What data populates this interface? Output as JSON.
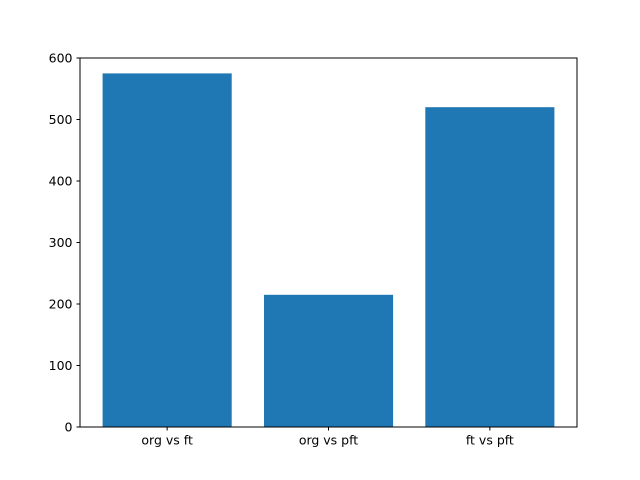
{
  "figure": {
    "background": "#ffffff"
  },
  "chart_data": {
    "type": "bar",
    "categories": [
      "org vs ft",
      "org vs pft",
      "ft vs pft"
    ],
    "values": [
      575,
      215,
      520
    ],
    "title": "",
    "xlabel": "",
    "ylabel": "",
    "ylim": [
      0,
      600
    ],
    "yticks": [
      0,
      100,
      200,
      300,
      400,
      500,
      600
    ],
    "bar_color": "#1f77b4",
    "axis_color": "#000000",
    "grid": false,
    "legend": "none"
  }
}
